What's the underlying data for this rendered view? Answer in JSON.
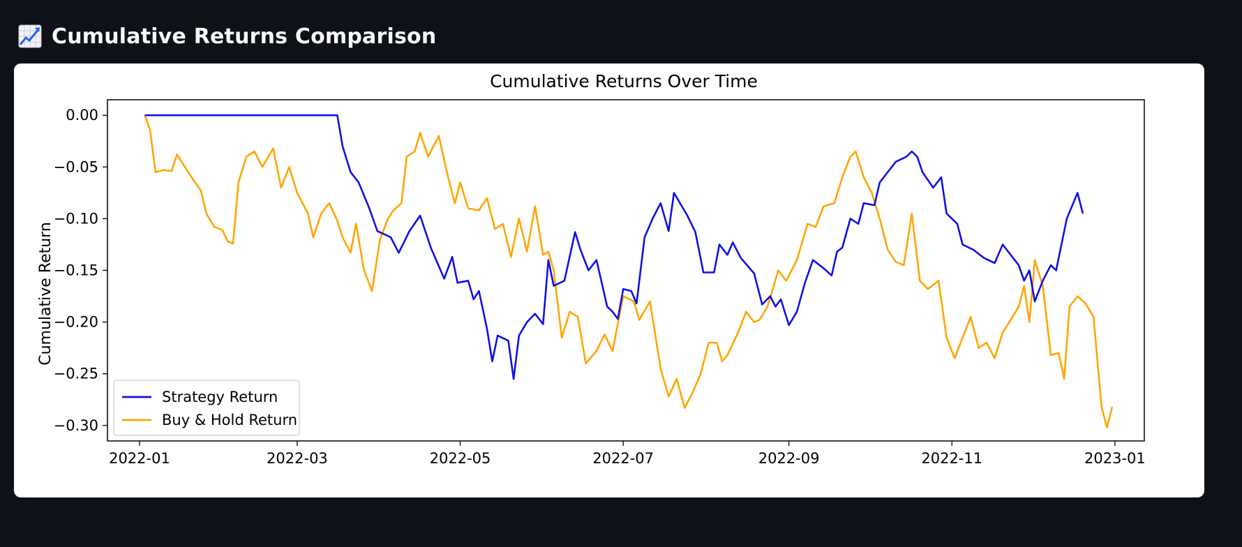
{
  "page": {
    "header_title": "Cumulative Returns Comparison",
    "header_icon": "chart-increasing-icon"
  },
  "chart_data": {
    "type": "line",
    "title": "Cumulative Returns Over Time",
    "xlabel": "",
    "ylabel": "Cumulative Return",
    "xlim": [
      "2021-12-20",
      "2023-01-12"
    ],
    "ylim": [
      -0.315,
      0.015
    ],
    "x_ticks": [
      "2022-01",
      "2022-03",
      "2022-05",
      "2022-07",
      "2022-09",
      "2022-11",
      "2023-01"
    ],
    "y_ticks": [
      0.0,
      -0.05,
      -0.1,
      -0.15,
      -0.2,
      -0.25,
      -0.3
    ],
    "y_tick_labels": [
      "0.00",
      "−0.05",
      "−0.10",
      "−0.15",
      "−0.20",
      "−0.25",
      "−0.30"
    ],
    "legend_position": "lower-left",
    "grid": false,
    "series": [
      {
        "name": "Strategy Return",
        "color": "#1010e8",
        "points": [
          [
            "2022-01-03",
            0.0
          ],
          [
            "2022-02-01",
            0.0
          ],
          [
            "2022-03-01",
            0.0
          ],
          [
            "2022-03-16",
            0.0
          ],
          [
            "2022-03-18",
            -0.03
          ],
          [
            "2022-03-21",
            -0.055
          ],
          [
            "2022-03-24",
            -0.065
          ],
          [
            "2022-03-28",
            -0.09
          ],
          [
            "2022-03-31",
            -0.112
          ],
          [
            "2022-04-05",
            -0.118
          ],
          [
            "2022-04-08",
            -0.133
          ],
          [
            "2022-04-12",
            -0.112
          ],
          [
            "2022-04-16",
            -0.097
          ],
          [
            "2022-04-20",
            -0.128
          ],
          [
            "2022-04-25",
            -0.158
          ],
          [
            "2022-04-28",
            -0.137
          ],
          [
            "2022-04-30",
            -0.162
          ],
          [
            "2022-05-04",
            -0.16
          ],
          [
            "2022-05-06",
            -0.178
          ],
          [
            "2022-05-08",
            -0.17
          ],
          [
            "2022-05-11",
            -0.206
          ],
          [
            "2022-05-13",
            -0.238
          ],
          [
            "2022-05-15",
            -0.213
          ],
          [
            "2022-05-19",
            -0.218
          ],
          [
            "2022-05-21",
            -0.255
          ],
          [
            "2022-05-23",
            -0.213
          ],
          [
            "2022-05-26",
            -0.2
          ],
          [
            "2022-05-29",
            -0.192
          ],
          [
            "2022-06-01",
            -0.202
          ],
          [
            "2022-06-03",
            -0.14
          ],
          [
            "2022-06-05",
            -0.165
          ],
          [
            "2022-06-09",
            -0.16
          ],
          [
            "2022-06-13",
            -0.113
          ],
          [
            "2022-06-15",
            -0.13
          ],
          [
            "2022-06-18",
            -0.15
          ],
          [
            "2022-06-21",
            -0.14
          ],
          [
            "2022-06-25",
            -0.185
          ],
          [
            "2022-06-27",
            -0.19
          ],
          [
            "2022-06-29",
            -0.197
          ],
          [
            "2022-07-01",
            -0.168
          ],
          [
            "2022-07-04",
            -0.17
          ],
          [
            "2022-07-06",
            -0.182
          ],
          [
            "2022-07-09",
            -0.118
          ],
          [
            "2022-07-12",
            -0.1
          ],
          [
            "2022-07-15",
            -0.085
          ],
          [
            "2022-07-18",
            -0.112
          ],
          [
            "2022-07-20",
            -0.075
          ],
          [
            "2022-07-25",
            -0.097
          ],
          [
            "2022-07-28",
            -0.113
          ],
          [
            "2022-07-31",
            -0.152
          ],
          [
            "2022-08-04",
            -0.152
          ],
          [
            "2022-08-06",
            -0.125
          ],
          [
            "2022-08-09",
            -0.135
          ],
          [
            "2022-08-11",
            -0.123
          ],
          [
            "2022-08-14",
            -0.138
          ],
          [
            "2022-08-19",
            -0.153
          ],
          [
            "2022-08-22",
            -0.183
          ],
          [
            "2022-08-25",
            -0.175
          ],
          [
            "2022-08-27",
            -0.185
          ],
          [
            "2022-08-29",
            -0.178
          ],
          [
            "2022-09-01",
            -0.203
          ],
          [
            "2022-09-04",
            -0.19
          ],
          [
            "2022-09-07",
            -0.162
          ],
          [
            "2022-09-10",
            -0.14
          ],
          [
            "2022-09-14",
            -0.148
          ],
          [
            "2022-09-17",
            -0.155
          ],
          [
            "2022-09-19",
            -0.132
          ],
          [
            "2022-09-21",
            -0.128
          ],
          [
            "2022-09-24",
            -0.1
          ],
          [
            "2022-09-27",
            -0.105
          ],
          [
            "2022-09-29",
            -0.085
          ],
          [
            "2022-10-03",
            -0.087
          ],
          [
            "2022-10-05",
            -0.065
          ],
          [
            "2022-10-08",
            -0.055
          ],
          [
            "2022-10-11",
            -0.045
          ],
          [
            "2022-10-15",
            -0.04
          ],
          [
            "2022-10-17",
            -0.035
          ],
          [
            "2022-10-19",
            -0.04
          ],
          [
            "2022-10-21",
            -0.055
          ],
          [
            "2022-10-25",
            -0.07
          ],
          [
            "2022-10-28",
            -0.06
          ],
          [
            "2022-10-30",
            -0.095
          ],
          [
            "2022-11-03",
            -0.105
          ],
          [
            "2022-11-05",
            -0.125
          ],
          [
            "2022-11-09",
            -0.13
          ],
          [
            "2022-11-13",
            -0.138
          ],
          [
            "2022-11-17",
            -0.143
          ],
          [
            "2022-11-20",
            -0.125
          ],
          [
            "2022-11-23",
            -0.135
          ],
          [
            "2022-11-26",
            -0.145
          ],
          [
            "2022-11-28",
            -0.16
          ],
          [
            "2022-11-30",
            -0.15
          ],
          [
            "2022-12-02",
            -0.18
          ],
          [
            "2022-12-05",
            -0.16
          ],
          [
            "2022-12-08",
            -0.145
          ],
          [
            "2022-12-10",
            -0.15
          ],
          [
            "2022-12-14",
            -0.1
          ],
          [
            "2022-12-18",
            -0.075
          ],
          [
            "2022-12-20",
            -0.095
          ]
        ]
      },
      {
        "name": "Buy & Hold Return",
        "color": "#ffa500",
        "points": [
          [
            "2022-01-03",
            0.0
          ],
          [
            "2022-01-05",
            -0.015
          ],
          [
            "2022-01-07",
            -0.055
          ],
          [
            "2022-01-10",
            -0.053
          ],
          [
            "2022-01-13",
            -0.054
          ],
          [
            "2022-01-15",
            -0.038
          ],
          [
            "2022-01-18",
            -0.05
          ],
          [
            "2022-01-21",
            -0.062
          ],
          [
            "2022-01-24",
            -0.073
          ],
          [
            "2022-01-26",
            -0.095
          ],
          [
            "2022-01-29",
            -0.108
          ],
          [
            "2022-02-01",
            -0.111
          ],
          [
            "2022-02-03",
            -0.122
          ],
          [
            "2022-02-05",
            -0.124
          ],
          [
            "2022-02-07",
            -0.065
          ],
          [
            "2022-02-10",
            -0.04
          ],
          [
            "2022-02-13",
            -0.035
          ],
          [
            "2022-02-16",
            -0.05
          ],
          [
            "2022-02-20",
            -0.032
          ],
          [
            "2022-02-23",
            -0.07
          ],
          [
            "2022-02-26",
            -0.05
          ],
          [
            "2022-03-01",
            -0.075
          ],
          [
            "2022-03-05",
            -0.095
          ],
          [
            "2022-03-07",
            -0.118
          ],
          [
            "2022-03-10",
            -0.095
          ],
          [
            "2022-03-13",
            -0.085
          ],
          [
            "2022-03-16",
            -0.102
          ],
          [
            "2022-03-18",
            -0.118
          ],
          [
            "2022-03-21",
            -0.133
          ],
          [
            "2022-03-23",
            -0.105
          ],
          [
            "2022-03-26",
            -0.15
          ],
          [
            "2022-03-29",
            -0.17
          ],
          [
            "2022-04-01",
            -0.12
          ],
          [
            "2022-04-04",
            -0.1
          ],
          [
            "2022-04-06",
            -0.092
          ],
          [
            "2022-04-09",
            -0.085
          ],
          [
            "2022-04-11",
            -0.04
          ],
          [
            "2022-04-14",
            -0.035
          ],
          [
            "2022-04-16",
            -0.017
          ],
          [
            "2022-04-19",
            -0.04
          ],
          [
            "2022-04-23",
            -0.02
          ],
          [
            "2022-04-26",
            -0.055
          ],
          [
            "2022-04-29",
            -0.085
          ],
          [
            "2022-05-01",
            -0.065
          ],
          [
            "2022-05-04",
            -0.09
          ],
          [
            "2022-05-08",
            -0.092
          ],
          [
            "2022-05-11",
            -0.08
          ],
          [
            "2022-05-14",
            -0.11
          ],
          [
            "2022-05-17",
            -0.105
          ],
          [
            "2022-05-20",
            -0.137
          ],
          [
            "2022-05-23",
            -0.1
          ],
          [
            "2022-05-26",
            -0.132
          ],
          [
            "2022-05-29",
            -0.088
          ],
          [
            "2022-06-01",
            -0.135
          ],
          [
            "2022-06-03",
            -0.132
          ],
          [
            "2022-06-05",
            -0.15
          ],
          [
            "2022-06-08",
            -0.215
          ],
          [
            "2022-06-11",
            -0.19
          ],
          [
            "2022-06-14",
            -0.195
          ],
          [
            "2022-06-17",
            -0.24
          ],
          [
            "2022-06-21",
            -0.228
          ],
          [
            "2022-06-24",
            -0.212
          ],
          [
            "2022-06-27",
            -0.228
          ],
          [
            "2022-07-01",
            -0.175
          ],
          [
            "2022-07-05",
            -0.18
          ],
          [
            "2022-07-07",
            -0.198
          ],
          [
            "2022-07-11",
            -0.18
          ],
          [
            "2022-07-15",
            -0.245
          ],
          [
            "2022-07-18",
            -0.272
          ],
          [
            "2022-07-21",
            -0.255
          ],
          [
            "2022-07-24",
            -0.283
          ],
          [
            "2022-07-27",
            -0.268
          ],
          [
            "2022-07-30",
            -0.25
          ],
          [
            "2022-08-02",
            -0.22
          ],
          [
            "2022-08-05",
            -0.22
          ],
          [
            "2022-08-07",
            -0.238
          ],
          [
            "2022-08-09",
            -0.232
          ],
          [
            "2022-08-13",
            -0.21
          ],
          [
            "2022-08-16",
            -0.19
          ],
          [
            "2022-08-19",
            -0.2
          ],
          [
            "2022-08-21",
            -0.198
          ],
          [
            "2022-08-24",
            -0.185
          ],
          [
            "2022-08-26",
            -0.168
          ],
          [
            "2022-08-28",
            -0.15
          ],
          [
            "2022-08-31",
            -0.16
          ],
          [
            "2022-09-04",
            -0.14
          ],
          [
            "2022-09-08",
            -0.105
          ],
          [
            "2022-09-11",
            -0.108
          ],
          [
            "2022-09-14",
            -0.088
          ],
          [
            "2022-09-18",
            -0.085
          ],
          [
            "2022-09-21",
            -0.06
          ],
          [
            "2022-09-24",
            -0.04
          ],
          [
            "2022-09-26",
            -0.035
          ],
          [
            "2022-09-29",
            -0.06
          ],
          [
            "2022-10-02",
            -0.075
          ],
          [
            "2022-10-05",
            -0.1
          ],
          [
            "2022-10-08",
            -0.13
          ],
          [
            "2022-10-11",
            -0.142
          ],
          [
            "2022-10-14",
            -0.145
          ],
          [
            "2022-10-17",
            -0.095
          ],
          [
            "2022-10-20",
            -0.16
          ],
          [
            "2022-10-23",
            -0.168
          ],
          [
            "2022-10-27",
            -0.16
          ],
          [
            "2022-10-30",
            -0.215
          ],
          [
            "2022-11-02",
            -0.235
          ],
          [
            "2022-11-05",
            -0.215
          ],
          [
            "2022-11-08",
            -0.195
          ],
          [
            "2022-11-11",
            -0.225
          ],
          [
            "2022-11-14",
            -0.22
          ],
          [
            "2022-11-17",
            -0.235
          ],
          [
            "2022-11-20",
            -0.21
          ],
          [
            "2022-11-23",
            -0.198
          ],
          [
            "2022-11-26",
            -0.185
          ],
          [
            "2022-11-28",
            -0.165
          ],
          [
            "2022-11-30",
            -0.2
          ],
          [
            "2022-12-02",
            -0.14
          ],
          [
            "2022-12-05",
            -0.165
          ],
          [
            "2022-12-08",
            -0.232
          ],
          [
            "2022-12-11",
            -0.23
          ],
          [
            "2022-12-13",
            -0.255
          ],
          [
            "2022-12-15",
            -0.185
          ],
          [
            "2022-12-18",
            -0.175
          ],
          [
            "2022-12-21",
            -0.182
          ],
          [
            "2022-12-24",
            -0.195
          ],
          [
            "2022-12-27",
            -0.282
          ],
          [
            "2022-12-29",
            -0.302
          ],
          [
            "2022-12-31",
            -0.282
          ]
        ]
      }
    ]
  }
}
